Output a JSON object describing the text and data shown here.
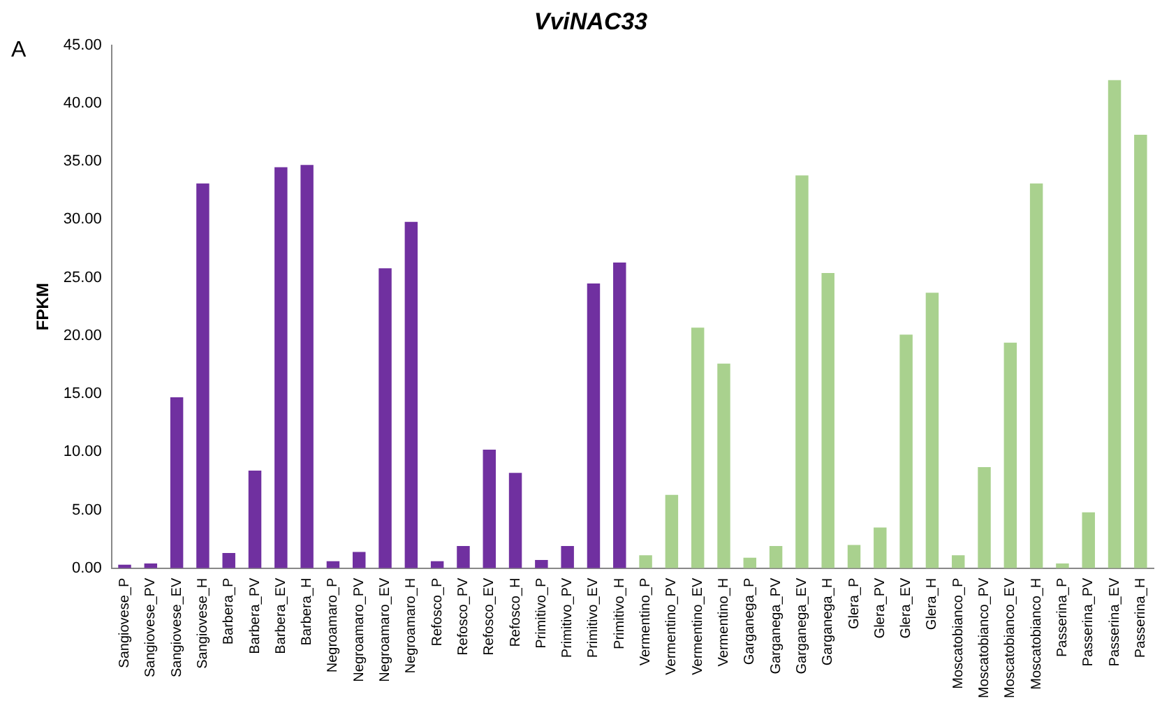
{
  "chart_data": {
    "type": "bar",
    "title": "VviNAC33",
    "ylabel": "FPKM",
    "annotations": [
      "A"
    ],
    "categories": [
      "Sangiovese_P",
      "Sangiovese_PV",
      "Sangiovese_EV",
      "Sangiovese_H",
      "Barbera_P",
      "Barbera_PV",
      "Barbera_EV",
      "Barbera_H",
      "Negroamaro_P",
      "Negroamaro_PV",
      "Negroamaro_EV",
      "Negroamaro_H",
      "Refosco_P",
      "Refosco_PV",
      "Refosco_EV",
      "Refosco_H",
      "Primitivo_P",
      "Primitivo_PV",
      "Primitivo_EV",
      "Primitivo_H",
      "Vermentino_P",
      "Vermentino_PV",
      "Vermentino_EV",
      "Vermentino_H",
      "Garganega_P",
      "Garganega_PV",
      "Garganega_EV",
      "Garganega_H",
      "Glera_P",
      "Glera_PV",
      "Glera_EV",
      "Glera_H",
      "Moscatobianco_P",
      "Moscatobianco_PV",
      "Moscatobianco_EV",
      "Moscatobianco_H",
      "Passerina_P",
      "Passerina_PV",
      "Passerina_EV",
      "Passerina_H"
    ],
    "values": [
      0.3,
      0.4,
      14.7,
      33.1,
      1.3,
      8.4,
      34.5,
      34.7,
      0.6,
      1.4,
      25.8,
      29.8,
      0.6,
      1.9,
      10.2,
      8.2,
      0.7,
      1.9,
      24.5,
      26.3,
      1.1,
      6.3,
      20.7,
      17.6,
      0.9,
      1.9,
      33.8,
      25.4,
      2.0,
      3.5,
      20.1,
      23.7,
      1.1,
      8.7,
      19.4,
      33.1,
      0.4,
      4.8,
      42.0,
      37.3
    ],
    "colors": [
      "#7030a0",
      "#7030a0",
      "#7030a0",
      "#7030a0",
      "#7030a0",
      "#7030a0",
      "#7030a0",
      "#7030a0",
      "#7030a0",
      "#7030a0",
      "#7030a0",
      "#7030a0",
      "#7030a0",
      "#7030a0",
      "#7030a0",
      "#7030a0",
      "#7030a0",
      "#7030a0",
      "#7030a0",
      "#7030a0",
      "#a9d18e",
      "#a9d18e",
      "#a9d18e",
      "#a9d18e",
      "#a9d18e",
      "#a9d18e",
      "#a9d18e",
      "#a9d18e",
      "#a9d18e",
      "#a9d18e",
      "#a9d18e",
      "#a9d18e",
      "#a9d18e",
      "#a9d18e",
      "#a9d18e",
      "#a9d18e",
      "#a9d18e",
      "#a9d18e",
      "#a9d18e",
      "#a9d18e"
    ],
    "ylim": [
      0,
      45
    ],
    "yticks": [
      {
        "value": 0,
        "label": "0.00"
      },
      {
        "value": 5,
        "label": "5.00"
      },
      {
        "value": 10,
        "label": "10.00"
      },
      {
        "value": 15,
        "label": "15.00"
      },
      {
        "value": 20,
        "label": "20.00"
      },
      {
        "value": 25,
        "label": "25.00"
      },
      {
        "value": 30,
        "label": "30.00"
      },
      {
        "value": 35,
        "label": "35.00"
      },
      {
        "value": 40,
        "label": "40.00"
      },
      {
        "value": 45,
        "label": "45.00"
      }
    ],
    "grid": false,
    "legend": false
  }
}
